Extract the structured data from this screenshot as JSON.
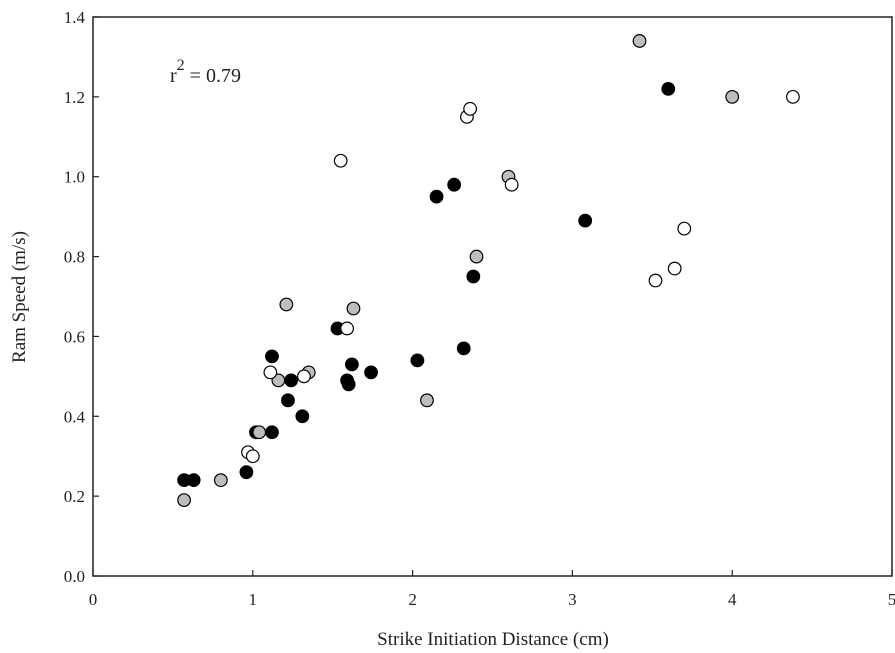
{
  "chart_data": {
    "type": "scatter",
    "title": "",
    "xlabel": "Strike Initiation Distance (cm)",
    "ylabel": "Ram Speed (m/s)",
    "xlim": [
      0,
      5
    ],
    "ylim": [
      0,
      1.4
    ],
    "x_ticks": [
      "0",
      "1",
      "2",
      "3",
      "4",
      "5"
    ],
    "y_ticks": [
      "0.0",
      "0.2",
      "0.4",
      "0.6",
      "0.8",
      "1.0",
      "1.2",
      "1.4"
    ],
    "grid": false,
    "legend": "none",
    "annotation": {
      "base": "r",
      "exponent": "2",
      "rest": " = 0.79"
    },
    "series": [
      {
        "marker": "filled-black",
        "color": "#000000",
        "points": [
          [
            0.57,
            0.24
          ],
          [
            0.63,
            0.24
          ],
          [
            0.96,
            0.26
          ],
          [
            1.02,
            0.36
          ],
          [
            1.12,
            0.36
          ],
          [
            1.12,
            0.55
          ],
          [
            1.22,
            0.44
          ],
          [
            1.24,
            0.49
          ],
          [
            1.31,
            0.4
          ],
          [
            1.53,
            0.62
          ],
          [
            1.59,
            0.49
          ],
          [
            1.6,
            0.48
          ],
          [
            1.62,
            0.53
          ],
          [
            1.74,
            0.51
          ],
          [
            2.03,
            0.54
          ],
          [
            2.15,
            0.95
          ],
          [
            2.26,
            0.98
          ],
          [
            2.32,
            0.57
          ],
          [
            2.38,
            0.75
          ],
          [
            3.08,
            0.89
          ],
          [
            3.6,
            1.22
          ]
        ]
      },
      {
        "marker": "filled-grey",
        "color": "#bdbdbd",
        "points": [
          [
            0.57,
            0.19
          ],
          [
            0.8,
            0.24
          ],
          [
            1.04,
            0.36
          ],
          [
            1.16,
            0.49
          ],
          [
            1.21,
            0.68
          ],
          [
            1.35,
            0.51
          ],
          [
            1.63,
            0.67
          ],
          [
            2.09,
            0.44
          ],
          [
            2.4,
            0.8
          ],
          [
            2.6,
            1.0
          ],
          [
            3.42,
            1.34
          ],
          [
            4.0,
            1.2
          ]
        ]
      },
      {
        "marker": "open",
        "color": "#ffffff",
        "points": [
          [
            0.97,
            0.31
          ],
          [
            1.0,
            0.3
          ],
          [
            1.11,
            0.51
          ],
          [
            1.32,
            0.5
          ],
          [
            1.55,
            1.04
          ],
          [
            1.59,
            0.62
          ],
          [
            2.34,
            1.15
          ],
          [
            2.36,
            1.17
          ],
          [
            2.62,
            0.98
          ],
          [
            3.52,
            0.74
          ],
          [
            3.64,
            0.77
          ],
          [
            3.7,
            0.87
          ],
          [
            4.38,
            1.2
          ]
        ]
      }
    ]
  }
}
